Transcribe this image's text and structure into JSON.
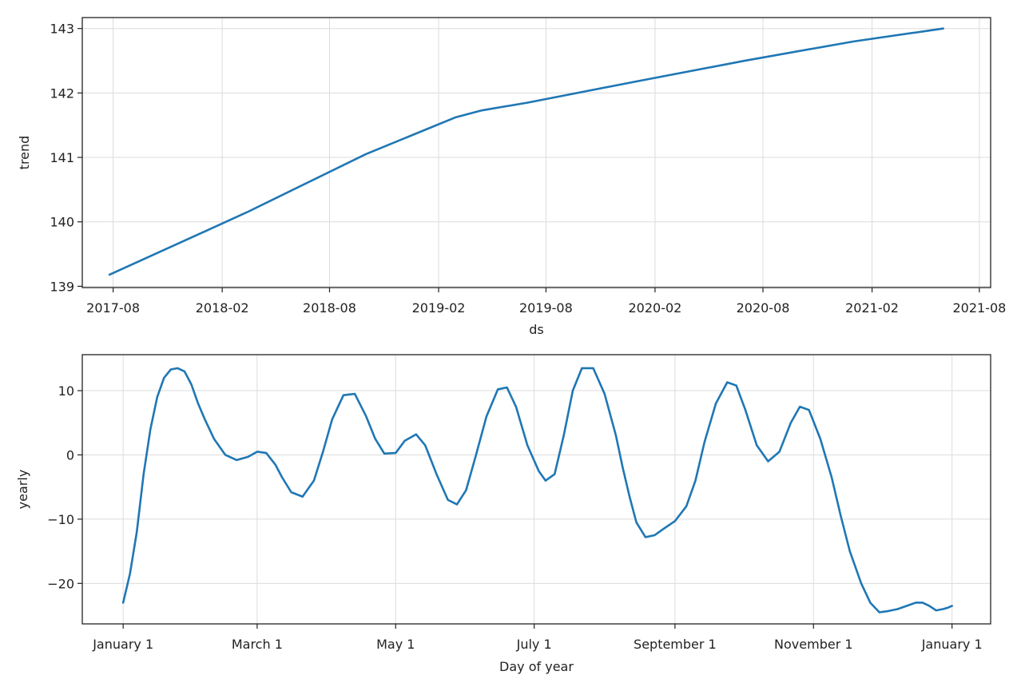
{
  "chart_data": [
    {
      "type": "line",
      "xlabel": "ds",
      "ylabel": "trend",
      "x_ticks": [
        "2017-08",
        "2018-02",
        "2018-08",
        "2019-02",
        "2019-08",
        "2020-02",
        "2020-08",
        "2021-02",
        "2021-08"
      ],
      "y_ticks": [
        "139",
        "140",
        "141",
        "142",
        "143"
      ],
      "xlim": [
        "2017-06-10",
        "2021-08-20"
      ],
      "ylim": [
        138.98,
        143.17
      ],
      "grid": true,
      "series": [
        {
          "color": "#1f77b4",
          "x": [
            "2017-07-26",
            "2018-03-15",
            "2018-10-01",
            "2019-01-15",
            "2019-03-01",
            "2019-04-15",
            "2019-07-01",
            "2020-01-01",
            "2020-07-01",
            "2021-01-01",
            "2021-06-01"
          ],
          "values": [
            139.18,
            140.15,
            141.05,
            141.45,
            141.62,
            141.73,
            141.85,
            142.18,
            142.5,
            142.8,
            143.0
          ]
        }
      ]
    },
    {
      "type": "line",
      "xlabel": "Day of year",
      "ylabel": "yearly",
      "x_ticks": [
        "January 1",
        "March 1",
        "May 1",
        "July 1",
        "September 1",
        "November 1",
        "January 1"
      ],
      "x_tick_days": [
        0,
        59,
        120,
        181,
        243,
        304,
        365
      ],
      "y_ticks": [
        "10",
        "0",
        "−10",
        "−20"
      ],
      "y_tick_values": [
        10,
        0,
        -10,
        -20
      ],
      "xlim": [
        -18,
        382
      ],
      "ylim": [
        -26.3,
        15.6
      ],
      "grid": true,
      "series": [
        {
          "color": "#1f77b4",
          "x": [
            0,
            3,
            6,
            9,
            12,
            15,
            18,
            21,
            24,
            27,
            30,
            33,
            36,
            40,
            45,
            50,
            55,
            59,
            63,
            67,
            70,
            74,
            79,
            84,
            88,
            92,
            97,
            102,
            107,
            111,
            115,
            120,
            124,
            129,
            133,
            138,
            143,
            147,
            151,
            155,
            160,
            165,
            169,
            173,
            178,
            183,
            186,
            190,
            194,
            198,
            202,
            207,
            212,
            217,
            220,
            223,
            226,
            230,
            234,
            238,
            243,
            248,
            252,
            256,
            261,
            266,
            270,
            274,
            279,
            284,
            289,
            294,
            298,
            302,
            307,
            312,
            316,
            320,
            325,
            329,
            333,
            337,
            341,
            345,
            349,
            352,
            355,
            358,
            361,
            363,
            365
          ],
          "values": [
            -23.0,
            -18.5,
            -12.0,
            -3.0,
            4.0,
            9.0,
            12.0,
            13.3,
            13.5,
            13.0,
            11.0,
            8.0,
            5.5,
            2.5,
            0.0,
            -0.8,
            -0.3,
            0.5,
            0.3,
            -1.5,
            -3.5,
            -5.8,
            -6.5,
            -4.0,
            0.5,
            5.5,
            9.3,
            9.5,
            6.0,
            2.5,
            0.2,
            0.3,
            2.2,
            3.2,
            1.5,
            -3.0,
            -7.0,
            -7.7,
            -5.5,
            -0.5,
            6.0,
            10.2,
            10.5,
            7.5,
            1.5,
            -2.5,
            -4.0,
            -3.0,
            3.0,
            10.0,
            13.5,
            13.5,
            9.5,
            3.0,
            -2.0,
            -6.5,
            -10.5,
            -12.8,
            -12.5,
            -11.5,
            -10.3,
            -8.0,
            -4.0,
            2.0,
            8.0,
            11.3,
            10.8,
            7.0,
            1.5,
            -1.0,
            0.5,
            5.0,
            7.5,
            7.0,
            2.5,
            -3.5,
            -9.5,
            -15.0,
            -20.0,
            -23.0,
            -24.5,
            -24.3,
            -24.0,
            -23.5,
            -23.0,
            -23.0,
            -23.5,
            -24.2,
            -24.0,
            -23.8,
            -23.5
          ]
        }
      ]
    }
  ]
}
